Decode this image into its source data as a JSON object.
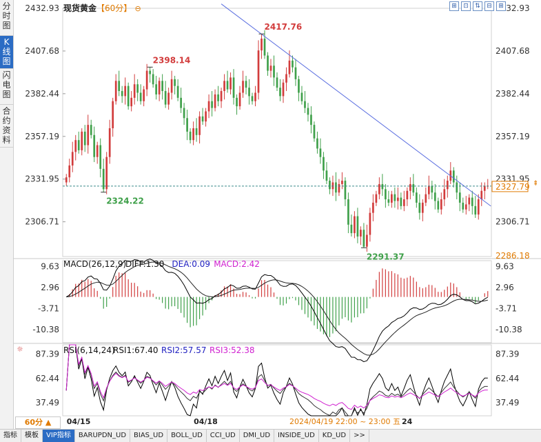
{
  "side_tabs": [
    {
      "label": "分时图",
      "active": false
    },
    {
      "label": "K线图",
      "active": true
    },
    {
      "label": "闪电图",
      "active": false
    },
    {
      "label": "合约资料",
      "active": false
    }
  ],
  "header": {
    "title": "现货黄金",
    "period": "【60分】",
    "selector_icon": "⊖"
  },
  "toolbar_icons": [
    "expand-icon",
    "fullscreen-icon",
    "draw-icon",
    "settings-icon",
    "zoom-icon"
  ],
  "toolbar_glyphs": [
    "⊞",
    "⊡",
    "⇅",
    "⊟",
    "⊞"
  ],
  "last_price_label": "2327.79",
  "period_button": "60分 ▲",
  "bottom_tabs": [
    {
      "label": "指标",
      "active": false
    },
    {
      "label": "模板",
      "active": false
    },
    {
      "label": "VIP指标",
      "active": true
    },
    {
      "label": "BARUPDN_UD",
      "active": false
    },
    {
      "label": "BIAS_UD",
      "active": false
    },
    {
      "label": "BOLL_UD",
      "active": false
    },
    {
      "label": "CCI_UD",
      "active": false
    },
    {
      "label": "DMI_UD",
      "active": false
    },
    {
      "label": "INSIDE_UD",
      "active": false
    },
    {
      "label": "KD_UD",
      "active": false
    },
    {
      "label": ">>",
      "active": false
    }
  ],
  "colors": {
    "up": "#d23c3c",
    "down": "#3fa04a",
    "accent": "#e07a00",
    "trendline": "#5a6ee0",
    "macd_diff": "#000000",
    "macd_dea": "#222222",
    "rsi1": "#000000",
    "rsi2": "#333333",
    "rsi3": "#d020d0"
  },
  "chart_data": [
    {
      "type": "candlestick",
      "title": "现货黄金【60分】",
      "y_ticks": [
        "2432.93",
        "2407.68",
        "2382.44",
        "2357.19",
        "2331.95",
        "2306.71"
      ],
      "y_ticks_right": [
        "2432.93",
        "2407.68",
        "2382.44",
        "2357.19",
        "2331.95",
        "2306.71",
        "2286.18"
      ],
      "ylim": [
        2286.18,
        2432.93
      ],
      "x_labels": [
        {
          "label": "04/15",
          "index": 1
        },
        {
          "label": "04/18",
          "index": 42
        }
      ],
      "crosshair_time": "2024/04/19 22:00 ~ 23:00 五",
      "crosshair_day": "24",
      "current_price": 2327.79,
      "annotations": [
        {
          "text": "2398.14",
          "index": 27,
          "value": 2398.14,
          "type": "high"
        },
        {
          "text": "2417.76",
          "index": 63,
          "value": 2417.76,
          "type": "high"
        },
        {
          "text": "2324.22",
          "index": 12,
          "value": 2324.22,
          "type": "low"
        },
        {
          "text": "2291.37",
          "index": 96,
          "value": 2291.37,
          "type": "low"
        }
      ],
      "trendline": [
        {
          "index": 50,
          "value": 2435.5
        },
        {
          "index": 137,
          "value": 2316.0
        }
      ],
      "candles_count": 137,
      "closes": [
        2333,
        2340,
        2348,
        2355,
        2349,
        2360,
        2352,
        2364,
        2358,
        2345,
        2352,
        2338,
        2326,
        2345,
        2362,
        2378,
        2390,
        2384,
        2381,
        2387,
        2375,
        2380,
        2388,
        2383,
        2378,
        2385,
        2396,
        2394,
        2388,
        2382,
        2390,
        2384,
        2376,
        2383,
        2391,
        2387,
        2380,
        2374,
        2368,
        2360,
        2355,
        2362,
        2358,
        2369,
        2366,
        2372,
        2378,
        2374,
        2382,
        2378,
        2384,
        2390,
        2385,
        2392,
        2380,
        2375,
        2383,
        2390,
        2386,
        2381,
        2378,
        2383,
        2408,
        2415,
        2405,
        2396,
        2399,
        2392,
        2386,
        2381,
        2389,
        2394,
        2402,
        2398,
        2391,
        2383,
        2378,
        2374,
        2370,
        2364,
        2356,
        2350,
        2345,
        2337,
        2331,
        2326,
        2330,
        2324,
        2329,
        2331,
        2320,
        2305,
        2300,
        2310,
        2298,
        2302,
        2292,
        2299,
        2312,
        2318,
        2323,
        2329,
        2326,
        2320,
        2318,
        2323,
        2319,
        2321,
        2316,
        2320,
        2325,
        2329,
        2324,
        2318,
        2312,
        2318,
        2323,
        2328,
        2324,
        2319,
        2314,
        2320,
        2326,
        2331,
        2337,
        2330,
        2324,
        2318,
        2314,
        2317,
        2321,
        2316,
        2311,
        2320,
        2325,
        2328,
        2328
      ],
      "macd_panel": {
        "label": "MACD(26,12,9)",
        "values": [
          {
            "name": "DIFF",
            "text": "DIFF:1.30"
          },
          {
            "name": "DEA",
            "text": "DEA:0.09"
          },
          {
            "name": "MACD",
            "text": "MACD:2.42"
          }
        ],
        "y_ticks": [
          "9.63",
          "2.96",
          "-3.71",
          "-10.38"
        ],
        "ylim": [
          -14.5,
          11.5
        ]
      },
      "rsi_panel": {
        "label": "RSI(6,14,24)",
        "values": [
          {
            "name": "RSI1",
            "text": "RSI1:67.40"
          },
          {
            "name": "RSI2",
            "text": "RSI2:57.57"
          },
          {
            "name": "RSI3",
            "text": "RSI3:52.38"
          }
        ],
        "y_ticks": [
          "87.39",
          "62.44",
          "37.49"
        ],
        "ylim": [
          24,
          97
        ]
      }
    }
  ]
}
